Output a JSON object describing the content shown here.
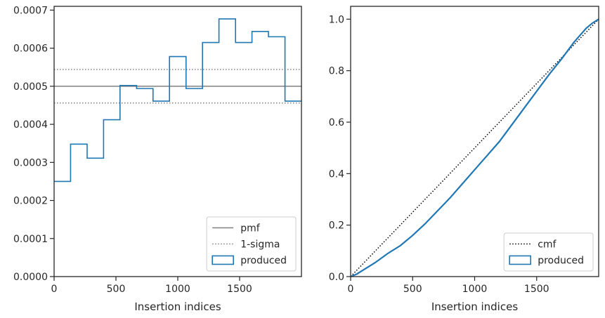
{
  "chart_data": [
    {
      "type": "line",
      "xlabel": "Insertion indices",
      "ylabel": "",
      "xlim": [
        0,
        2000
      ],
      "ylim": [
        0,
        0.00071
      ],
      "xticks": [
        0,
        500,
        1000,
        1500
      ],
      "xtick_labels": [
        "0",
        "500",
        "1000",
        "1500"
      ],
      "yticks": [
        0,
        0.0001,
        0.0002,
        0.0003,
        0.0004,
        0.0005,
        0.0006,
        0.0007
      ],
      "ytick_labels": [
        "0.0000",
        "0.0001",
        "0.0002",
        "0.0003",
        "0.0004",
        "0.0005",
        "0.0006",
        "0.0007"
      ],
      "grid": false,
      "legend": "bottom-right",
      "series": [
        {
          "name": "pmf",
          "style": "solid",
          "color": "#808080",
          "y": 0.0005
        },
        {
          "name": "1-sigma",
          "style": "dotted",
          "color": "#808080",
          "y_values": [
            0.000456,
            0.000544
          ]
        },
        {
          "name": "produced",
          "style": "step",
          "color": "#1f77b4",
          "bin_edges": [
            0,
            133,
            267,
            400,
            533,
            667,
            800,
            933,
            1067,
            1200,
            1333,
            1467,
            1600,
            1733,
            1867,
            2000
          ],
          "values": [
            0.00025,
            0.000348,
            0.000311,
            0.000412,
            0.000502,
            0.000494,
            0.000461,
            0.000578,
            0.000494,
            0.000615,
            0.000677,
            0.000615,
            0.000644,
            0.00063,
            0.000461
          ]
        }
      ]
    },
    {
      "type": "line",
      "xlabel": "Insertion indices",
      "ylabel": "",
      "xlim": [
        0,
        2000
      ],
      "ylim": [
        0,
        1.05
      ],
      "xticks": [
        0,
        500,
        1000,
        1500
      ],
      "xtick_labels": [
        "0",
        "500",
        "1000",
        "1500"
      ],
      "yticks": [
        0,
        0.2,
        0.4,
        0.6,
        0.8,
        1.0
      ],
      "ytick_labels": [
        "0.0",
        "0.2",
        "0.4",
        "0.6",
        "0.8",
        "1.0"
      ],
      "grid": false,
      "legend": "bottom-right",
      "series": [
        {
          "name": "cmf",
          "style": "dotted",
          "color": "#000000",
          "x": [
            0,
            2000
          ],
          "y": [
            0,
            1.0
          ]
        },
        {
          "name": "produced",
          "style": "solid",
          "color": "#1f77b4",
          "x": [
            0,
            50,
            100,
            200,
            300,
            400,
            500,
            600,
            700,
            800,
            900,
            1000,
            1100,
            1200,
            1300,
            1400,
            1500,
            1600,
            1700,
            1800,
            1900,
            1950,
            2000
          ],
          "y": [
            0,
            0.01,
            0.025,
            0.055,
            0.09,
            0.12,
            0.16,
            0.205,
            0.255,
            0.305,
            0.36,
            0.415,
            0.47,
            0.525,
            0.59,
            0.655,
            0.72,
            0.785,
            0.845,
            0.91,
            0.965,
            0.985,
            1.0
          ]
        }
      ]
    }
  ]
}
